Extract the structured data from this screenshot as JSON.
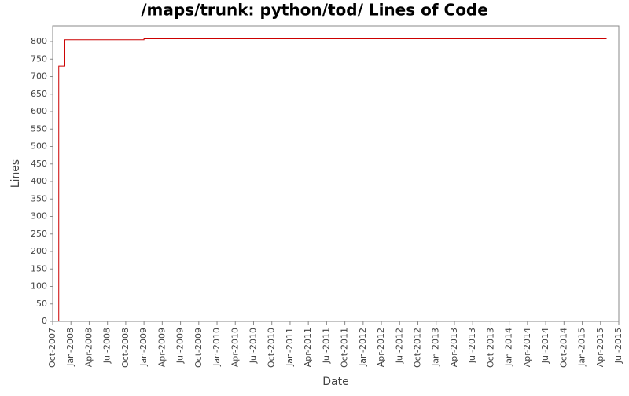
{
  "chart_data": {
    "type": "step",
    "title": "/maps/trunk: python/tod/ Lines of Code",
    "x_label": "Date",
    "y_label": "Lines",
    "x": [
      "2007-11",
      "2007-11",
      "2007-11",
      "2007-12",
      "2009-01",
      "2015-05"
    ],
    "series": [
      {
        "name": "Lines",
        "color": "#cc0000",
        "values": [
          0,
          430,
          730,
          805,
          808,
          808
        ]
      }
    ],
    "xlim": [
      "2007-10",
      "2015-07"
    ],
    "xticks": [
      {
        "value": "2007-10",
        "label": "Oct-2007"
      },
      {
        "value": "2008-01",
        "label": "Jan-2008"
      },
      {
        "value": "2008-04",
        "label": "Apr-2008"
      },
      {
        "value": "2008-07",
        "label": "Jul-2008"
      },
      {
        "value": "2008-10",
        "label": "Oct-2008"
      },
      {
        "value": "2009-01",
        "label": "Jan-2009"
      },
      {
        "value": "2009-04",
        "label": "Apr-2009"
      },
      {
        "value": "2009-07",
        "label": "Jul-2009"
      },
      {
        "value": "2009-10",
        "label": "Oct-2009"
      },
      {
        "value": "2010-01",
        "label": "Jan-2010"
      },
      {
        "value": "2010-04",
        "label": "Apr-2010"
      },
      {
        "value": "2010-07",
        "label": "Jul-2010"
      },
      {
        "value": "2010-10",
        "label": "Oct-2010"
      },
      {
        "value": "2011-01",
        "label": "Jan-2011"
      },
      {
        "value": "2011-04",
        "label": "Apr-2011"
      },
      {
        "value": "2011-07",
        "label": "Jul-2011"
      },
      {
        "value": "2011-10",
        "label": "Oct-2011"
      },
      {
        "value": "2012-01",
        "label": "Jan-2012"
      },
      {
        "value": "2012-04",
        "label": "Apr-2012"
      },
      {
        "value": "2012-07",
        "label": "Jul-2012"
      },
      {
        "value": "2012-10",
        "label": "Oct-2012"
      },
      {
        "value": "2013-01",
        "label": "Jan-2013"
      },
      {
        "value": "2013-04",
        "label": "Apr-2013"
      },
      {
        "value": "2013-07",
        "label": "Jul-2013"
      },
      {
        "value": "2013-10",
        "label": "Oct-2013"
      },
      {
        "value": "2014-01",
        "label": "Jan-2014"
      },
      {
        "value": "2014-04",
        "label": "Apr-2014"
      },
      {
        "value": "2014-07",
        "label": "Jul-2014"
      },
      {
        "value": "2014-10",
        "label": "Oct-2014"
      },
      {
        "value": "2015-01",
        "label": "Jan-2015"
      },
      {
        "value": "2015-04",
        "label": "Apr-2015"
      },
      {
        "value": "2015-07",
        "label": "Jul-2015"
      }
    ],
    "ylim": [
      0,
      845
    ],
    "yticks": [
      0,
      50,
      100,
      150,
      200,
      250,
      300,
      350,
      400,
      450,
      500,
      550,
      600,
      650,
      700,
      750,
      800
    ],
    "grid": false
  }
}
